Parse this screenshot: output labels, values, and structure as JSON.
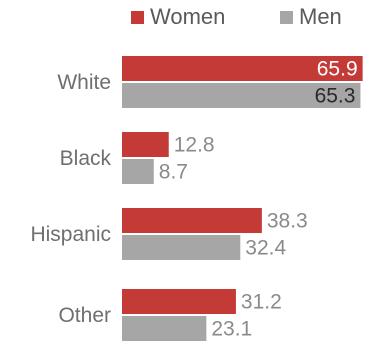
{
  "colors": {
    "women": "#c43a36",
    "men": "#a6a6a6",
    "background": "#ffffff"
  },
  "chart_data": {
    "type": "bar",
    "orientation": "horizontal",
    "categories": [
      "White",
      "Black",
      "Hispanic",
      "Other"
    ],
    "series": [
      {
        "name": "Women",
        "values": [
          65.9,
          12.8,
          38.3,
          31.2
        ]
      },
      {
        "name": "Men",
        "values": [
          65.3,
          8.7,
          32.4,
          23.1
        ]
      }
    ],
    "legend_position": "top",
    "xlim": [
      0,
      66
    ],
    "grid": false
  }
}
